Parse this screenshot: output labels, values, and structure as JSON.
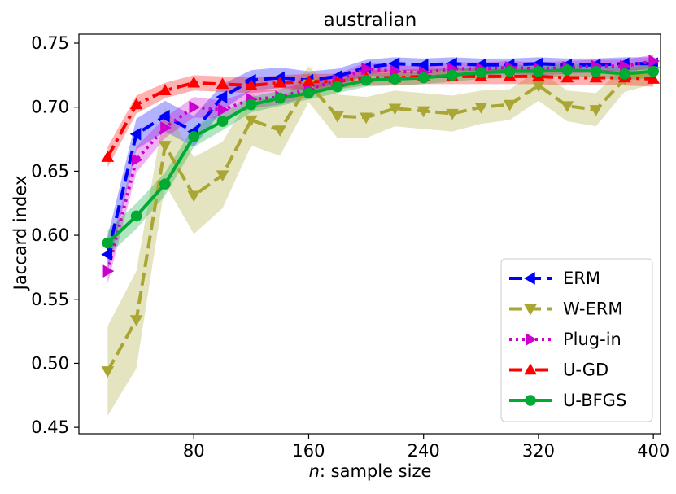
{
  "chart_data": {
    "type": "line",
    "title": "australian",
    "xlabel_italic": "n",
    "xlabel_rest": ": sample size",
    "ylabel": "Jaccard index",
    "xlim": [
      0,
      405
    ],
    "ylim": [
      0.445,
      0.757
    ],
    "xticks": [
      80,
      160,
      240,
      320,
      400
    ],
    "yticks": [
      0.45,
      0.5,
      0.55,
      0.6,
      0.65,
      0.7,
      0.75
    ],
    "ytick_labels": [
      "0.45",
      "0.50",
      "0.55",
      "0.60",
      "0.65",
      "0.70",
      "0.75"
    ],
    "legend_position": "lower-right",
    "grid": false,
    "x": [
      20,
      40,
      60,
      80,
      100,
      120,
      140,
      160,
      180,
      200,
      220,
      240,
      260,
      280,
      300,
      320,
      340,
      360,
      380,
      400
    ],
    "series": [
      {
        "name": "ERM",
        "color": "#0000ff",
        "linestyle": "dashed",
        "marker": "triangle-left",
        "values": [
          0.585,
          0.679,
          0.693,
          0.681,
          0.708,
          0.721,
          0.723,
          0.721,
          0.724,
          0.731,
          0.734,
          0.733,
          0.734,
          0.733,
          0.733,
          0.734,
          0.733,
          0.733,
          0.734,
          0.734
        ],
        "band": [
          0.014,
          0.012,
          0.012,
          0.012,
          0.01,
          0.008,
          0.008,
          0.007,
          0.006,
          0.006,
          0.005,
          0.005,
          0.005,
          0.005,
          0.005,
          0.005,
          0.005,
          0.005,
          0.005,
          0.005
        ]
      },
      {
        "name": "W-ERM",
        "color": "#a9a633",
        "linestyle": "dashed",
        "marker": "triangle-down",
        "values": [
          0.494,
          0.534,
          0.67,
          0.631,
          0.647,
          0.69,
          0.682,
          0.718,
          0.693,
          0.692,
          0.699,
          0.697,
          0.695,
          0.7,
          0.702,
          0.717,
          0.701,
          0.698,
          0.722,
          0.728
        ],
        "band": [
          0.035,
          0.038,
          0.03,
          0.03,
          0.026,
          0.02,
          0.02,
          0.014,
          0.017,
          0.016,
          0.014,
          0.014,
          0.014,
          0.013,
          0.012,
          0.012,
          0.012,
          0.013,
          0.01,
          0.01
        ]
      },
      {
        "name": "Plug-in",
        "color": "#cc00cc",
        "linestyle": "dotted",
        "marker": "triangle-right",
        "values": [
          0.572,
          0.659,
          0.684,
          0.7,
          0.698,
          0.706,
          0.708,
          0.714,
          0.721,
          0.73,
          0.728,
          0.727,
          0.73,
          0.73,
          0.731,
          0.73,
          0.731,
          0.732,
          0.732,
          0.736
        ],
        "band": [
          0.01,
          0.01,
          0.008,
          0.008,
          0.007,
          0.007,
          0.006,
          0.006,
          0.005,
          0.005,
          0.005,
          0.005,
          0.005,
          0.005,
          0.005,
          0.005,
          0.005,
          0.005,
          0.005,
          0.005
        ]
      },
      {
        "name": "U-GD",
        "color": "#ff0000",
        "linestyle": "dashdot",
        "marker": "triangle-up",
        "values": [
          0.661,
          0.702,
          0.713,
          0.719,
          0.718,
          0.717,
          0.719,
          0.72,
          0.72,
          0.723,
          0.723,
          0.724,
          0.724,
          0.724,
          0.724,
          0.724,
          0.723,
          0.723,
          0.723,
          0.722
        ],
        "band": [
          0.008,
          0.007,
          0.006,
          0.006,
          0.006,
          0.006,
          0.006,
          0.006,
          0.006,
          0.006,
          0.006,
          0.006,
          0.006,
          0.006,
          0.006,
          0.006,
          0.006,
          0.006,
          0.006,
          0.006
        ]
      },
      {
        "name": "U-BFGS",
        "color": "#00aa33",
        "linestyle": "solid",
        "marker": "circle",
        "values": [
          0.594,
          0.615,
          0.64,
          0.677,
          0.689,
          0.702,
          0.707,
          0.711,
          0.716,
          0.721,
          0.722,
          0.723,
          0.725,
          0.727,
          0.728,
          0.728,
          0.729,
          0.728,
          0.726,
          0.728
        ],
        "band": [
          0.01,
          0.01,
          0.009,
          0.008,
          0.007,
          0.006,
          0.006,
          0.005,
          0.005,
          0.005,
          0.005,
          0.005,
          0.005,
          0.005,
          0.005,
          0.005,
          0.005,
          0.005,
          0.005,
          0.005
        ]
      }
    ]
  }
}
